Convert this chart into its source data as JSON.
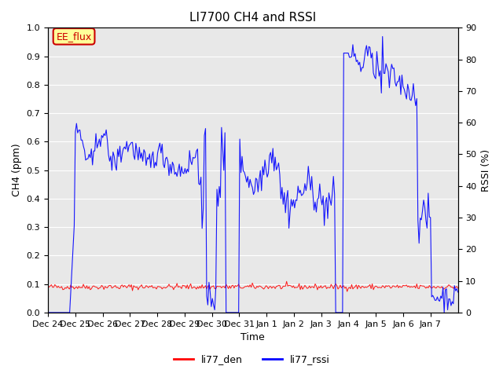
{
  "title": "LI7700 CH4 and RSSI",
  "ylabel_left": "CH4 (ppm)",
  "ylabel_right": "RSSI (%)",
  "xlabel": "Time",
  "ylim_left": [
    0.0,
    1.0
  ],
  "ylim_right": [
    0,
    90
  ],
  "yticks_left": [
    0.0,
    0.1,
    0.2,
    0.3,
    0.4,
    0.5,
    0.6,
    0.7,
    0.8,
    0.9,
    1.0
  ],
  "yticks_right": [
    0,
    10,
    20,
    30,
    40,
    50,
    60,
    70,
    80,
    90
  ],
  "xtick_labels": [
    "Dec 24",
    "Dec 25",
    "Dec 26",
    "Dec 27",
    "Dec 28",
    "Dec 29",
    "Dec 30",
    "Dec 31",
    "Jan 1",
    "Jan 2",
    "Jan 3",
    "Jan 4",
    "Jan 5",
    "Jan 6",
    "Jan 7"
  ],
  "color_den": "#ff0000",
  "color_rssi": "#0000ff",
  "legend_label_den": "li77_den",
  "legend_label_rssi": "li77_rssi",
  "annotation_text": "EE_flux",
  "annotation_color": "#cc0000",
  "annotation_bg": "#ffff99",
  "bg_color": "#e8e8e8",
  "grid_color": "#ffffff",
  "title_fontsize": 11,
  "axis_fontsize": 9,
  "tick_fontsize": 8
}
